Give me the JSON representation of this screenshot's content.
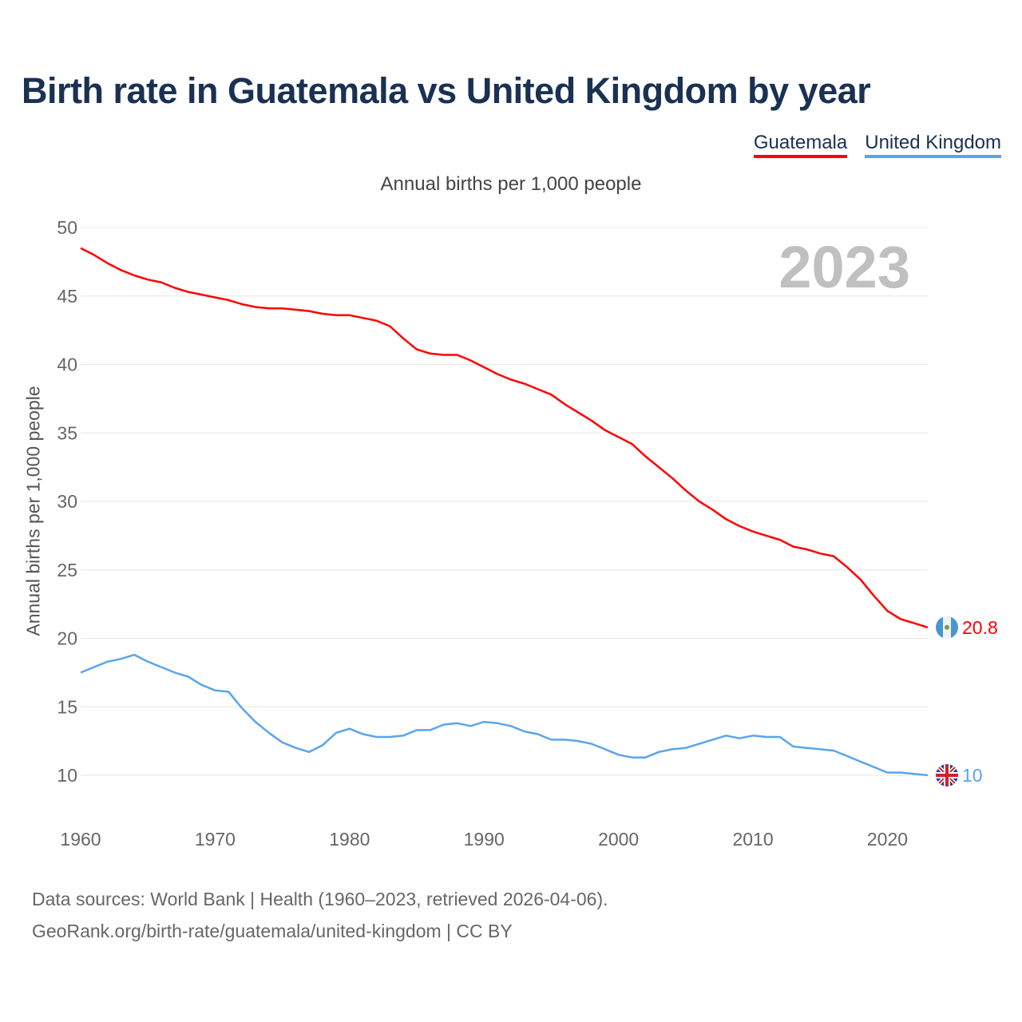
{
  "chart_data": {
    "type": "line",
    "title": "Birth rate in Guatemala vs United Kingdom by year",
    "subtitle": "Annual births per 1,000 people",
    "xlabel": "",
    "ylabel": "Annual births per 1,000 people",
    "xlim": [
      1960,
      2023
    ],
    "ylim": [
      10,
      50
    ],
    "grid": true,
    "legend_position": "top-right",
    "year_label": "2023",
    "x_ticks": [
      "1960",
      "1970",
      "1980",
      "1990",
      "2000",
      "2010",
      "2020"
    ],
    "y_ticks": [
      "10",
      "15",
      "20",
      "25",
      "30",
      "35",
      "40",
      "45",
      "50"
    ],
    "x_start": 1960,
    "series": [
      {
        "name": "Guatemala",
        "color": "#ff0000",
        "end_label": "20.8",
        "flag": "guatemala-flag",
        "values": [
          48.5,
          48.0,
          47.4,
          46.9,
          46.5,
          46.2,
          46.0,
          45.6,
          45.3,
          45.1,
          44.9,
          44.7,
          44.4,
          44.2,
          44.1,
          44.1,
          44.0,
          43.9,
          43.7,
          43.6,
          43.6,
          43.4,
          43.2,
          42.8,
          41.9,
          41.1,
          40.8,
          40.7,
          40.7,
          40.3,
          39.8,
          39.3,
          38.9,
          38.6,
          38.2,
          37.8,
          37.1,
          36.5,
          35.9,
          35.2,
          34.7,
          34.2,
          33.3,
          32.5,
          31.7,
          30.8,
          30.0,
          29.4,
          28.7,
          28.2,
          27.8,
          27.5,
          27.2,
          26.7,
          26.5,
          26.2,
          26.0,
          25.2,
          24.3,
          23.1,
          22.0,
          21.4,
          21.1,
          20.8
        ]
      },
      {
        "name": "United Kingdom",
        "color": "#5aa5ea",
        "end_label": "10",
        "flag": "uk-flag",
        "values": [
          17.5,
          17.9,
          18.3,
          18.5,
          18.8,
          18.3,
          17.9,
          17.5,
          17.2,
          16.6,
          16.2,
          16.1,
          14.9,
          13.9,
          13.1,
          12.4,
          12.0,
          11.7,
          12.2,
          13.1,
          13.4,
          13.0,
          12.8,
          12.8,
          12.9,
          13.3,
          13.3,
          13.7,
          13.8,
          13.6,
          13.9,
          13.8,
          13.6,
          13.2,
          13.0,
          12.6,
          12.6,
          12.5,
          12.3,
          11.9,
          11.5,
          11.3,
          11.3,
          11.7,
          11.9,
          12.0,
          12.3,
          12.6,
          12.9,
          12.7,
          12.9,
          12.8,
          12.8,
          12.1,
          12.0,
          11.9,
          11.8,
          11.4,
          11.0,
          10.6,
          10.2,
          10.2,
          10.1,
          10.0
        ]
      }
    ]
  },
  "footer": {
    "line1": "Data sources: World Bank | Health (1960–2023, retrieved 2026-04-06).",
    "line2": "GeoRank.org/birth-rate/guatemala/united-kingdom | CC BY"
  }
}
